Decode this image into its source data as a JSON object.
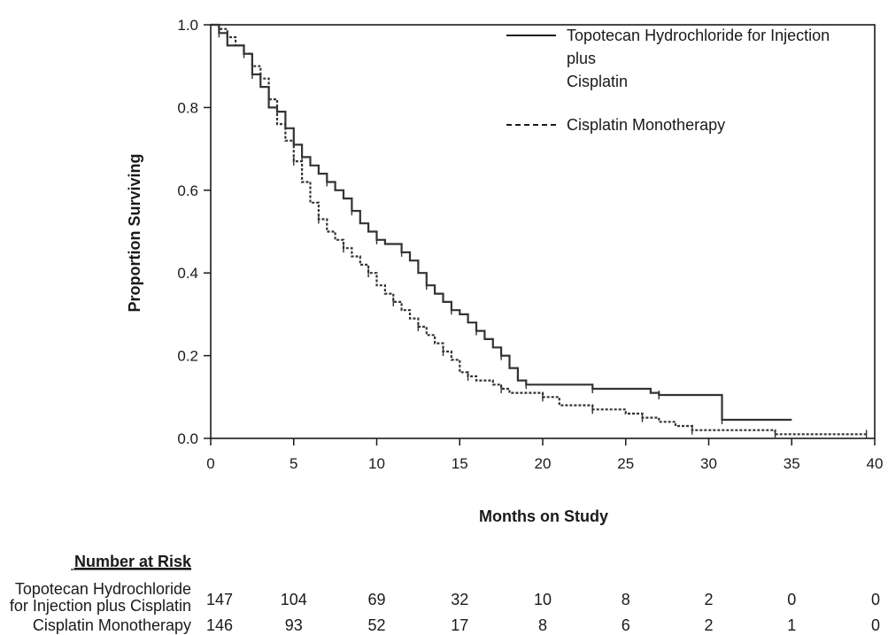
{
  "chart_data": {
    "type": "line",
    "title": "",
    "xlabel": "Months on Study",
    "ylabel": "Proportion Surviving",
    "xlim": [
      0,
      40
    ],
    "ylim": [
      0,
      1.0
    ],
    "x_ticks": [
      "0",
      "5",
      "10",
      "15",
      "20",
      "25",
      "30",
      "35",
      "40"
    ],
    "y_ticks": [
      "0.0",
      "0.2",
      "0.4",
      "0.6",
      "0.8",
      "1.0"
    ],
    "grid": false,
    "legend_position": "top-right",
    "series": [
      {
        "name_lines": [
          "Topotecan Hydrochloride for Injection",
          "plus",
          "Cisplatin"
        ],
        "style": "solid",
        "color": "#333333",
        "points": [
          [
            0,
            1.0
          ],
          [
            0.5,
            0.98
          ],
          [
            1,
            0.95
          ],
          [
            2,
            0.93
          ],
          [
            2.5,
            0.88
          ],
          [
            3,
            0.85
          ],
          [
            3.5,
            0.8
          ],
          [
            4,
            0.79
          ],
          [
            4.5,
            0.75
          ],
          [
            5,
            0.71
          ],
          [
            5.5,
            0.68
          ],
          [
            6,
            0.66
          ],
          [
            6.5,
            0.64
          ],
          [
            7,
            0.62
          ],
          [
            7.5,
            0.6
          ],
          [
            8,
            0.58
          ],
          [
            8.5,
            0.55
          ],
          [
            9,
            0.52
          ],
          [
            9.5,
            0.5
          ],
          [
            10,
            0.48
          ],
          [
            10.5,
            0.47
          ],
          [
            11,
            0.47
          ],
          [
            11.5,
            0.45
          ],
          [
            12,
            0.43
          ],
          [
            12.5,
            0.4
          ],
          [
            13,
            0.37
          ],
          [
            13.5,
            0.35
          ],
          [
            14,
            0.33
          ],
          [
            14.5,
            0.31
          ],
          [
            15,
            0.3
          ],
          [
            15.5,
            0.28
          ],
          [
            16,
            0.26
          ],
          [
            16.5,
            0.24
          ],
          [
            17,
            0.22
          ],
          [
            17.5,
            0.2
          ],
          [
            18,
            0.17
          ],
          [
            18.5,
            0.14
          ],
          [
            19,
            0.13
          ],
          [
            21,
            0.13
          ],
          [
            22.5,
            0.13
          ],
          [
            23,
            0.12
          ],
          [
            26,
            0.12
          ],
          [
            26.5,
            0.11
          ],
          [
            27,
            0.105
          ],
          [
            30,
            0.105
          ],
          [
            30.8,
            0.105
          ],
          [
            30.8,
            0.045
          ],
          [
            35,
            0.045
          ]
        ]
      },
      {
        "name_lines": [
          "Cisplatin Monotherapy"
        ],
        "style": "dashed",
        "color": "#333333",
        "points": [
          [
            0,
            1.0
          ],
          [
            0.5,
            0.99
          ],
          [
            1,
            0.97
          ],
          [
            1.5,
            0.95
          ],
          [
            2,
            0.93
          ],
          [
            2.5,
            0.9
          ],
          [
            3,
            0.87
          ],
          [
            3.5,
            0.82
          ],
          [
            4,
            0.76
          ],
          [
            4.5,
            0.72
          ],
          [
            5,
            0.67
          ],
          [
            5.5,
            0.62
          ],
          [
            6,
            0.57
          ],
          [
            6.5,
            0.53
          ],
          [
            7,
            0.5
          ],
          [
            7.5,
            0.48
          ],
          [
            8,
            0.46
          ],
          [
            8.5,
            0.44
          ],
          [
            9,
            0.42
          ],
          [
            9.5,
            0.4
          ],
          [
            10,
            0.37
          ],
          [
            10.5,
            0.35
          ],
          [
            11,
            0.33
          ],
          [
            11.5,
            0.31
          ],
          [
            12,
            0.29
          ],
          [
            12.5,
            0.27
          ],
          [
            13,
            0.25
          ],
          [
            13.5,
            0.23
          ],
          [
            14,
            0.21
          ],
          [
            14.5,
            0.19
          ],
          [
            15,
            0.16
          ],
          [
            15.5,
            0.15
          ],
          [
            16,
            0.14
          ],
          [
            17,
            0.13
          ],
          [
            17.5,
            0.12
          ],
          [
            18,
            0.11
          ],
          [
            19,
            0.11
          ],
          [
            20,
            0.1
          ],
          [
            21,
            0.08
          ],
          [
            22,
            0.08
          ],
          [
            23,
            0.07
          ],
          [
            24,
            0.07
          ],
          [
            25,
            0.06
          ],
          [
            26,
            0.05
          ],
          [
            27,
            0.04
          ],
          [
            28,
            0.03
          ],
          [
            29,
            0.02
          ],
          [
            31,
            0.02
          ],
          [
            33,
            0.02
          ],
          [
            34,
            0.01
          ],
          [
            36,
            0.01
          ],
          [
            38,
            0.01
          ],
          [
            39.5,
            0.01
          ]
        ]
      }
    ],
    "risk_table": {
      "header": "Number at Risk",
      "times": [
        0,
        5,
        10,
        15,
        20,
        25,
        30,
        35,
        40
      ],
      "rows": [
        {
          "label_lines": [
            "Topotecan Hydrochloride",
            "for Injection plus Cisplatin"
          ],
          "values": [
            "147",
            "104",
            "69",
            "32",
            "10",
            "8",
            "2",
            "0",
            "0"
          ]
        },
        {
          "label_lines": [
            "Cisplatin Monotherapy"
          ],
          "values": [
            "146",
            "93",
            "52",
            "17",
            "8",
            "6",
            "2",
            "1",
            "0"
          ]
        }
      ]
    }
  }
}
